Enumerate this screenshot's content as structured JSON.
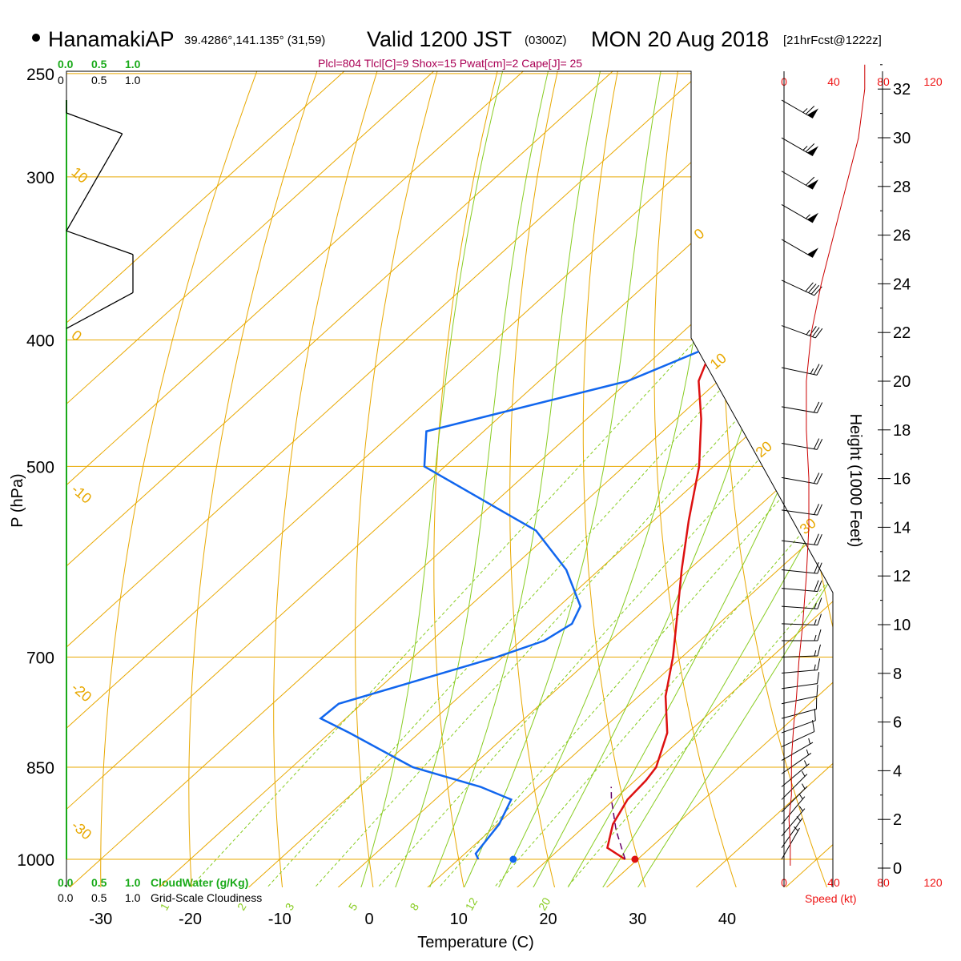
{
  "header": {
    "station": "HanamakiAP",
    "coords": "39.4286°,141.135° (31,59)",
    "valid_main": "Valid 1200 JST",
    "valid_z": "(0300Z)",
    "date": "MON 20 Aug 2018",
    "forecast": "[21hrFcst@1222z]",
    "indices": "Plcl=804 Tlcl[C]=9 Shox=15 Pwat[cm]=2 Cape[J]= 25"
  },
  "cloud_scale": {
    "ticks": [
      "0.0",
      "0.5",
      "1.0"
    ],
    "ticks_plain": [
      "0",
      "0.5",
      "1.0"
    ],
    "cloudwater_label": "CloudWater (g/Kg)",
    "cloudiness_label": "Grid-Scale Cloudiness"
  },
  "speed_scale": {
    "ticks": [
      "0",
      "40",
      "80",
      "120"
    ],
    "label": "Speed (kt)"
  },
  "colors": {
    "temperature": "#dd1111",
    "dewpoint": "#1166ee",
    "isotherm": "#e8a800",
    "dry_adiabat": "#e8a800",
    "moist_adiabat": "#88cc22",
    "mixing_ratio": "#88cc22",
    "parcel": "#660066",
    "wind_speed": "#cc0000",
    "cloudiness": "#000000"
  },
  "chart_data": {
    "type": "skew-T log-P sounding",
    "xlabel": "Temperature (C)",
    "ylabel": "P (hPa)",
    "y2label": "Height (1000 Feet)",
    "pressure_ticks": [
      250,
      300,
      400,
      500,
      700,
      850,
      1000
    ],
    "temperature_ticks": [
      -30,
      -20,
      -10,
      0,
      10,
      20,
      30,
      40
    ],
    "height_ticks_kft": [
      0,
      2,
      4,
      6,
      8,
      10,
      12,
      14,
      16,
      18,
      20,
      22,
      24,
      26,
      28,
      30,
      32
    ],
    "isotherm_labels": [
      {
        "value": "10",
        "p": 300
      },
      {
        "value": "0",
        "p": 400
      },
      {
        "value": "-10",
        "p": 525
      },
      {
        "value": "-20",
        "p": 745
      },
      {
        "value": "-30",
        "p": 950
      }
    ],
    "dry_adiabat_labels": [
      "0",
      "10",
      "20",
      "30"
    ],
    "mixing_ratio_labels": [
      "1",
      "2",
      "3",
      "5",
      "8",
      "12",
      "20"
    ],
    "series": [
      {
        "name": "temperature",
        "points": [
          {
            "p": 1000,
            "t": 28.6
          },
          {
            "p": 980,
            "t": 25.2
          },
          {
            "p": 940,
            "t": 22.9
          },
          {
            "p": 900,
            "t": 21.5
          },
          {
            "p": 870,
            "t": 21.2
          },
          {
            "p": 850,
            "t": 20.7
          },
          {
            "p": 800,
            "t": 17.7
          },
          {
            "p": 750,
            "t": 13.0
          },
          {
            "p": 700,
            "t": 9.0
          },
          {
            "p": 650,
            "t": 4.3
          },
          {
            "p": 600,
            "t": -0.8
          },
          {
            "p": 550,
            "t": -6.1
          },
          {
            "p": 500,
            "t": -11.6
          },
          {
            "p": 460,
            "t": -17.2
          },
          {
            "p": 430,
            "t": -22.2
          },
          {
            "p": 400,
            "t": -25.4
          },
          {
            "p": 370,
            "t": -28.0
          },
          {
            "p": 350,
            "t": -31.4
          },
          {
            "p": 320,
            "t": -36.9
          },
          {
            "p": 300,
            "t": -40.2
          },
          {
            "p": 262,
            "t": -46.5
          }
        ]
      },
      {
        "name": "dewpoint",
        "points": [
          {
            "p": 1000,
            "t": 12.2
          },
          {
            "p": 990,
            "t": 11.2
          },
          {
            "p": 940,
            "t": 10.2
          },
          {
            "p": 900,
            "t": 8.5
          },
          {
            "p": 880,
            "t": 3.5
          },
          {
            "p": 850,
            "t": -6.5
          },
          {
            "p": 800,
            "t": -17.8
          },
          {
            "p": 780,
            "t": -22.8
          },
          {
            "p": 760,
            "t": -22.6
          },
          {
            "p": 700,
            "t": -10.7
          },
          {
            "p": 680,
            "t": -7.4
          },
          {
            "p": 660,
            "t": -6.4
          },
          {
            "p": 640,
            "t": -7.6
          },
          {
            "p": 600,
            "t": -13.7
          },
          {
            "p": 560,
            "t": -21.9
          },
          {
            "p": 500,
            "t": -42.3
          },
          {
            "p": 470,
            "t": -46.4
          },
          {
            "p": 430,
            "t": -30.1
          },
          {
            "p": 395,
            "t": -23.1
          },
          {
            "p": 350,
            "t": -26.8
          },
          {
            "p": 330,
            "t": -34.4
          },
          {
            "p": 300,
            "t": -43.7
          },
          {
            "p": 262,
            "t": -50.0
          }
        ]
      },
      {
        "name": "parcel",
        "points": [
          {
            "p": 1000,
            "t": 28.6
          },
          {
            "p": 950,
            "t": 24.0
          },
          {
            "p": 900,
            "t": 19.7
          },
          {
            "p": 880,
            "t": 18.1
          }
        ]
      }
    ],
    "surface_markers": {
      "temperature": 29.7,
      "dewpoint": 16.1
    },
    "wind_profile": [
      {
        "h_kft": 0.1,
        "speed_kt": 5
      },
      {
        "h_kft": 1.0,
        "speed_kt": 5
      },
      {
        "h_kft": 2.0,
        "speed_kt": 4
      },
      {
        "h_kft": 3.0,
        "speed_kt": 6
      },
      {
        "h_kft": 4.5,
        "speed_kt": 6
      },
      {
        "h_kft": 6.0,
        "speed_kt": 8
      },
      {
        "h_kft": 7.0,
        "speed_kt": 10
      },
      {
        "h_kft": 8.5,
        "speed_kt": 12
      },
      {
        "h_kft": 10.0,
        "speed_kt": 15
      },
      {
        "h_kft": 12.0,
        "speed_kt": 18
      },
      {
        "h_kft": 14.0,
        "speed_kt": 20
      },
      {
        "h_kft": 16.0,
        "speed_kt": 20
      },
      {
        "h_kft": 18.0,
        "speed_kt": 18
      },
      {
        "h_kft": 20.0,
        "speed_kt": 18
      },
      {
        "h_kft": 22.0,
        "speed_kt": 22
      },
      {
        "h_kft": 24.0,
        "speed_kt": 30
      },
      {
        "h_kft": 26.0,
        "speed_kt": 40
      },
      {
        "h_kft": 28.0,
        "speed_kt": 50
      },
      {
        "h_kft": 30.0,
        "speed_kt": 60
      },
      {
        "h_kft": 32.0,
        "speed_kt": 65
      },
      {
        "h_kft": 33.0,
        "speed_kt": 65
      }
    ],
    "wind_barbs": [
      {
        "p": 1000,
        "dir": 210,
        "spd": 5
      },
      {
        "p": 980,
        "dir": 215,
        "spd": 5
      },
      {
        "p": 960,
        "dir": 220,
        "spd": 5
      },
      {
        "p": 940,
        "dir": 220,
        "spd": 5
      },
      {
        "p": 920,
        "dir": 225,
        "spd": 5
      },
      {
        "p": 900,
        "dir": 225,
        "spd": 5
      },
      {
        "p": 880,
        "dir": 230,
        "spd": 5
      },
      {
        "p": 860,
        "dir": 235,
        "spd": 5
      },
      {
        "p": 840,
        "dir": 240,
        "spd": 5
      },
      {
        "p": 820,
        "dir": 245,
        "spd": 10
      },
      {
        "p": 800,
        "dir": 250,
        "spd": 10
      },
      {
        "p": 780,
        "dir": 255,
        "spd": 10
      },
      {
        "p": 760,
        "dir": 258,
        "spd": 10
      },
      {
        "p": 740,
        "dir": 262,
        "spd": 10
      },
      {
        "p": 720,
        "dir": 265,
        "spd": 15
      },
      {
        "p": 700,
        "dir": 268,
        "spd": 15
      },
      {
        "p": 680,
        "dir": 270,
        "spd": 15
      },
      {
        "p": 660,
        "dir": 272,
        "spd": 15
      },
      {
        "p": 640,
        "dir": 274,
        "spd": 15
      },
      {
        "p": 620,
        "dir": 275,
        "spd": 20
      },
      {
        "p": 600,
        "dir": 276,
        "spd": 20
      },
      {
        "p": 570,
        "dir": 277,
        "spd": 20
      },
      {
        "p": 540,
        "dir": 278,
        "spd": 20
      },
      {
        "p": 510,
        "dir": 280,
        "spd": 20
      },
      {
        "p": 480,
        "dir": 280,
        "spd": 20
      },
      {
        "p": 450,
        "dir": 280,
        "spd": 20
      },
      {
        "p": 420,
        "dir": 282,
        "spd": 25
      },
      {
        "p": 390,
        "dir": 290,
        "spd": 35
      },
      {
        "p": 360,
        "dir": 295,
        "spd": 40
      },
      {
        "p": 335,
        "dir": 300,
        "spd": 50
      },
      {
        "p": 315,
        "dir": 300,
        "spd": 55
      },
      {
        "p": 297,
        "dir": 300,
        "spd": 60
      },
      {
        "p": 280,
        "dir": 300,
        "spd": 65
      },
      {
        "p": 262,
        "dir": 300,
        "spd": 65
      }
    ],
    "cloudiness_profile": [
      {
        "p": 262,
        "c": 0.0
      },
      {
        "p": 268,
        "c": 0.0
      },
      {
        "p": 278,
        "c": 0.42
      },
      {
        "p": 330,
        "c": 0.0
      },
      {
        "p": 344,
        "c": 0.5
      },
      {
        "p": 368,
        "c": 0.5
      },
      {
        "p": 392,
        "c": 0.0
      }
    ]
  }
}
